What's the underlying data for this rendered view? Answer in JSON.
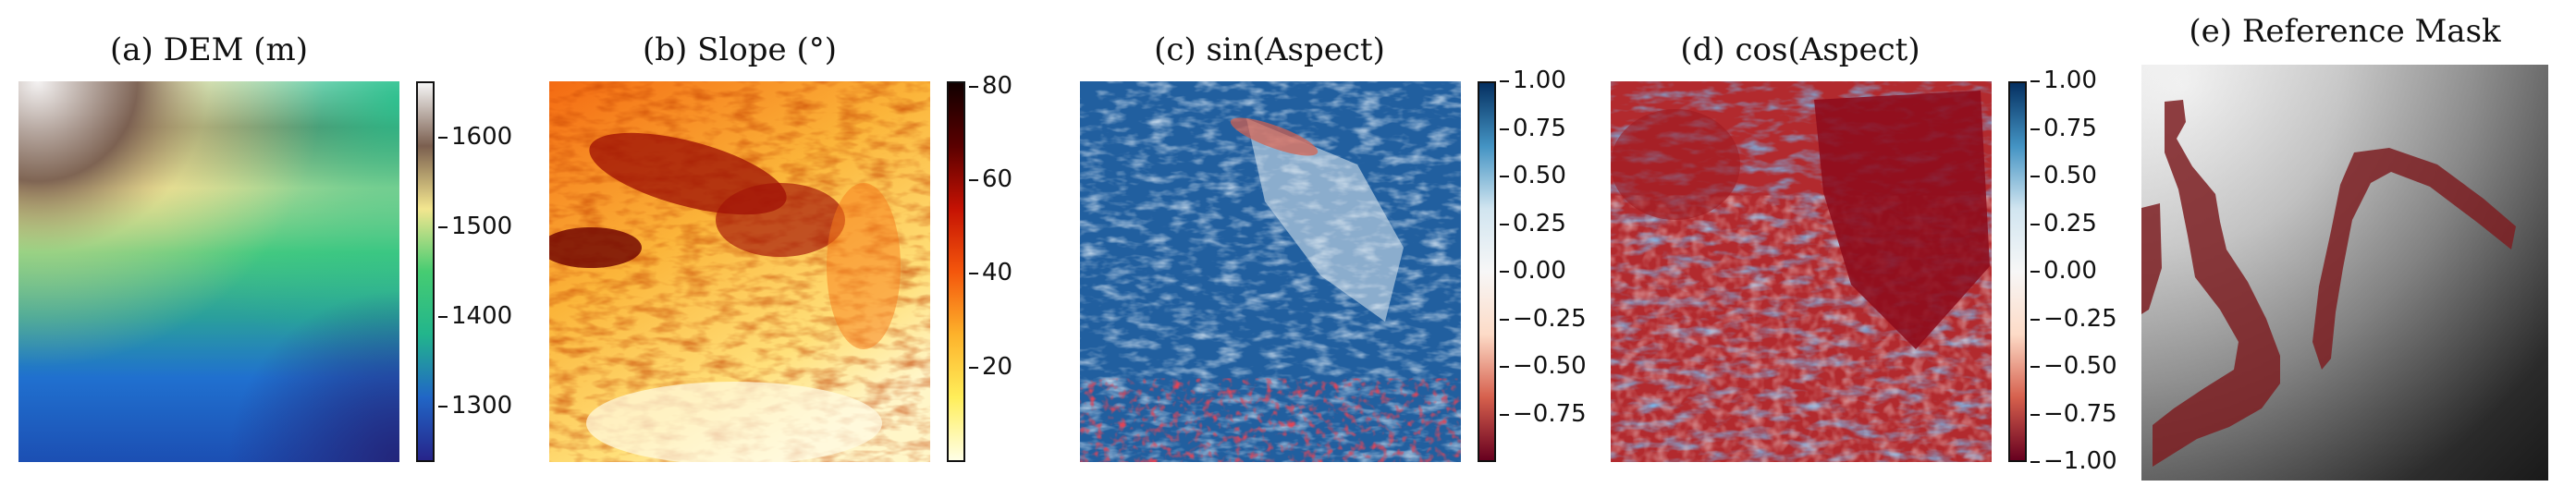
{
  "panels": [
    {
      "title": "(a) DEM (m)",
      "colorbar_ticks": [
        "1600",
        "1500",
        "1400",
        "1300"
      ]
    },
    {
      "title": "(b) Slope (°)",
      "colorbar_ticks": [
        "80",
        "60",
        "40",
        "20"
      ]
    },
    {
      "title": "(c) sin(Aspect)",
      "colorbar_ticks": [
        "1.00",
        "0.75",
        "0.50",
        "0.25",
        "0.00",
        "−0.25",
        "−0.50",
        "−0.75"
      ]
    },
    {
      "title": "(d) cos(Aspect)",
      "colorbar_ticks": [
        "1.00",
        "0.75",
        "0.50",
        "0.25",
        "0.00",
        "−0.25",
        "−0.50",
        "−0.75",
        "−1.00"
      ]
    },
    {
      "title": "(e) Reference Mask"
    }
  ],
  "colors": {
    "dem_high": "#f2f0f0",
    "dem_brown": "#7a5f50",
    "dem_yellow": "#f3e48e",
    "dem_green": "#2ec47a",
    "dem_blue": "#1e63c4",
    "dem_low": "#24267a",
    "slope_low": "#ffffd9",
    "slope_mid": "#fd8c1e",
    "slope_high": "#8a0000",
    "rdbu_blue": "#1b4f8f",
    "rdbu_red": "#8c0b1b",
    "mask": "#7d1f22"
  }
}
